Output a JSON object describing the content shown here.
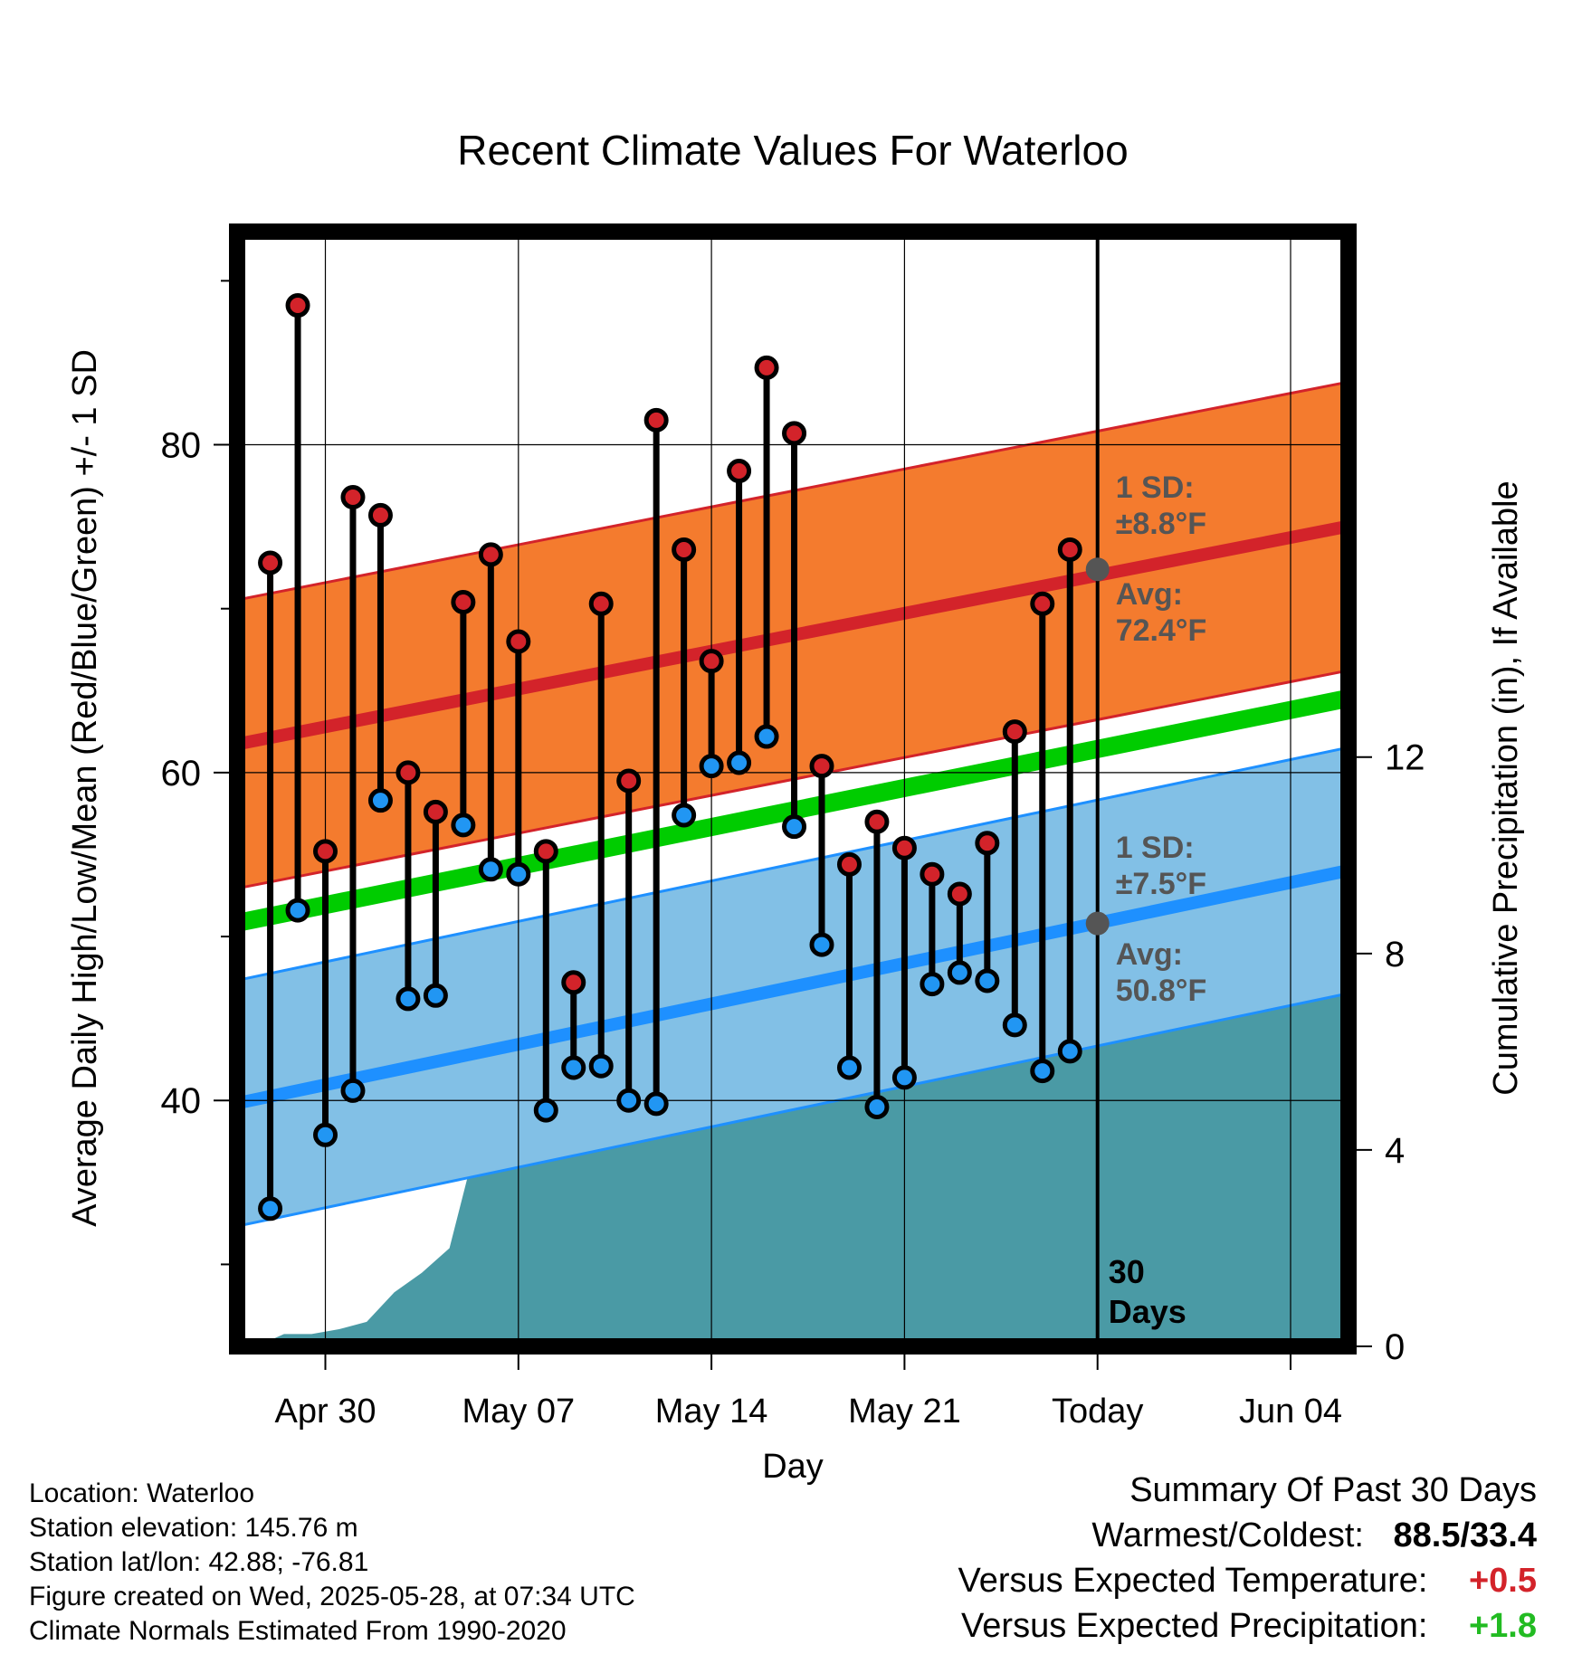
{
  "title": "Recent Climate Values For Waterloo",
  "colors": {
    "high_band": "#f47b2e",
    "high_line": "#d3232a",
    "low_band": "#82c0e6",
    "low_line": "#1e90ff",
    "mean_line": "#00cc00",
    "precip": "#4a9aa5",
    "high_dot": "#d3232a",
    "low_dot": "#2196f3",
    "annot": "#555555",
    "warm_text": "#d3232a",
    "wet_text": "#22bb22"
  },
  "chart_data": {
    "type": "line",
    "title": "Recent Climate Values For Waterloo",
    "xlabel": "Day",
    "ylabel": "Average Daily High/Low/Mean (Red/Blue/Green) +/- 1 SD",
    "y2label": "Cumulative Precipitation (in), If Available",
    "x_tick_labels": [
      "Apr 30",
      "May 07",
      "May 14",
      "May 21",
      "Today",
      "Jun 04"
    ],
    "x_tick_days": [
      3,
      10,
      17,
      24,
      31,
      38
    ],
    "xlim": [
      -0.2,
      40.1
    ],
    "ylim": [
      25.0,
      93.0
    ],
    "y_ticks": [
      40,
      60,
      80
    ],
    "y_minor_ticks": [
      30,
      50,
      70,
      90
    ],
    "y2lim": [
      0,
      22.7
    ],
    "y2_ticks": [
      0,
      4,
      8,
      12
    ],
    "today_day": 31,
    "days_label": [
      "30",
      "Days"
    ],
    "normals": {
      "days": [
        0,
        40
      ],
      "high_mean": [
        61.8,
        75.0
      ],
      "high_sd": 8.8,
      "low_mean": [
        39.9,
        54.0
      ],
      "low_sd": 7.5,
      "avg_mean": [
        50.9,
        64.5
      ]
    },
    "annotations": {
      "high_sd": [
        "1 SD:",
        "±8.8°F"
      ],
      "high_avg": [
        "Avg:",
        "72.4°F"
      ],
      "high_avg_value": 72.4,
      "low_sd": [
        "1 SD:",
        "±7.5°F"
      ],
      "low_avg": [
        "Avg:",
        "50.8°F"
      ],
      "low_avg_value": 50.8
    },
    "series": [
      {
        "name": "High",
        "values": [
          72.8,
          88.5,
          55.2,
          76.8,
          75.7,
          60.0,
          57.6,
          70.4,
          73.3,
          68.0,
          55.2,
          47.2,
          70.3,
          59.5,
          81.5,
          73.6,
          66.8,
          78.4,
          84.7,
          80.7,
          60.4,
          54.4,
          57.0,
          55.4,
          53.8,
          52.6,
          55.7,
          62.5,
          70.3,
          73.6
        ]
      },
      {
        "name": "Low",
        "values": [
          33.4,
          51.6,
          37.9,
          40.6,
          58.3,
          46.2,
          46.4,
          56.8,
          54.1,
          53.8,
          39.4,
          42.0,
          42.1,
          40.0,
          39.8,
          57.4,
          60.4,
          60.6,
          62.2,
          56.7,
          49.5,
          42.0,
          39.6,
          41.4,
          47.1,
          47.8,
          47.3,
          44.6,
          41.8,
          43.0
        ]
      }
    ],
    "precip": {
      "days": [
        0,
        0.5,
        1.5,
        2.5,
        3.5,
        4.5,
        5.5,
        6.5,
        7.5,
        8.5,
        9.5,
        10.5,
        11.5,
        12.5,
        13.5,
        14.5,
        15.5,
        16.5,
        17.5,
        18.5,
        19.5,
        20.5,
        21.5,
        22.5,
        23.5,
        24.5,
        25.5,
        26.5,
        27.5,
        40
      ],
      "values": [
        0,
        0,
        0.25,
        0.25,
        0.35,
        0.5,
        1.1,
        1.5,
        2.0,
        4.2,
        4.8,
        4.8,
        4.85,
        4.85,
        4.85,
        4.85,
        4.9,
        4.9,
        5.4,
        6.0,
        6.0,
        6.0,
        6.0,
        6.6,
        6.9,
        7.2,
        7.6,
        7.6,
        7.6,
        7.6
      ]
    }
  },
  "meta": {
    "location": "Location: Waterloo",
    "elevation": "Station elevation: 145.76 m",
    "latlon": "Station lat/lon: 42.88; -76.81",
    "created": "Figure created on Wed, 2025-05-28, at 07:34 UTC",
    "normals": "Climate Normals Estimated From 1990-2020"
  },
  "summary": {
    "title": "Summary Of Past 30 Days",
    "warm_label": "Warmest/Coldest:",
    "warm_value": "88.5/33.4",
    "temp_label": "Versus Expected Temperature:",
    "temp_value": "+0.5",
    "precip_label": "Versus Expected Precipitation:",
    "precip_value": "+1.8"
  }
}
